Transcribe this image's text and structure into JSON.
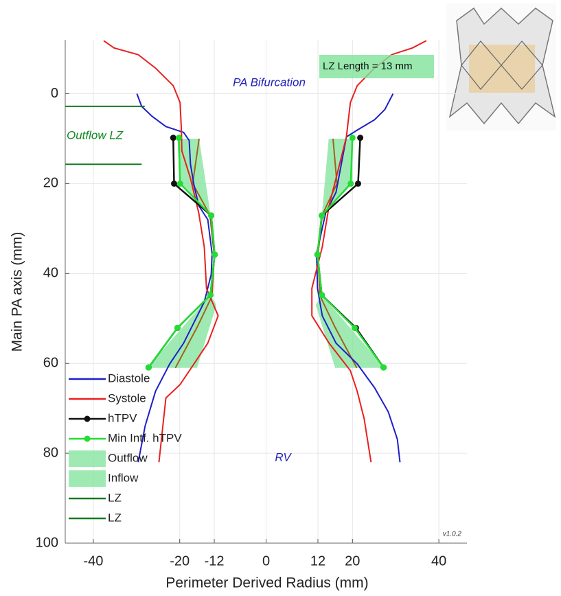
{
  "chart_data": {
    "type": "profile",
    "xlabel": "Perimeter Derived Radius (mm)",
    "ylabel": "Main PA axis (mm)",
    "xlim": [
      -46.5,
      46.5
    ],
    "ylim": [
      -12,
      100
    ],
    "y_reversed": true,
    "xticks": [
      -40,
      -20,
      -12,
      0,
      12,
      20,
      40
    ],
    "yticks": [
      0,
      20,
      40,
      60,
      80,
      100
    ],
    "grid": true,
    "legend": "lower left",
    "annotations": [
      "PA Bifurcation",
      "Outflow LZ",
      "RV",
      "LZ Length = 13 mm",
      "v1.0.2"
    ],
    "series": [
      {
        "name": "Outflow",
        "kind": "fill",
        "color": "#7fe39a",
        "x": [
          -20.5,
          -15.5,
          -13,
          -12.7,
          -20,
          null,
          14.5,
          20,
          20,
          12.9,
          13
        ],
        "y": [
          10,
          10,
          26,
          27.1,
          20,
          null,
          10,
          10,
          20,
          27.1,
          26
        ]
      },
      {
        "name": "Inflow",
        "kind": "fill",
        "color": "#7fe39a",
        "x": [
          -12.9,
          -11.5,
          -16,
          -27.5,
          null,
          12.9,
          27.5,
          16,
          11.5
        ],
        "y": [
          44.8,
          47,
          61,
          61,
          null,
          44.8,
          61,
          61,
          47
        ]
      },
      {
        "kind": "line",
        "color": "#a0621c",
        "x": [
          -15.5,
          -17,
          -13,
          -12,
          -12.5,
          -16,
          -21,
          null,
          15.5,
          16.4,
          13,
          12,
          12.5,
          16,
          21
        ],
        "y": [
          10,
          20,
          27,
          36,
          45,
          52,
          61,
          null,
          10,
          20,
          27,
          36,
          45,
          52,
          61
        ]
      },
      {
        "name": "Diastole",
        "kind": "line",
        "color": "#1f1fc8",
        "x": [
          -29.9,
          -28.8,
          -26.4,
          -23.2,
          -19.1,
          -17.8,
          -17.5,
          -16.7,
          -15.6,
          -13.5,
          -12.5,
          -12.7,
          -14.3,
          -16.7,
          -19.1,
          -22.3,
          -25.6,
          -28,
          -29.6,
          null,
          29.4,
          27.5,
          25.1,
          21.1,
          18.6,
          17.4,
          16.2,
          13.8,
          11.7,
          11.9,
          13,
          16.2,
          21.1,
          25.1,
          28.3,
          30.4,
          31
        ],
        "y": [
          0,
          2.8,
          5,
          7.3,
          8.6,
          10.4,
          15.7,
          20.3,
          24.9,
          28,
          35.6,
          40.2,
          46.3,
          50.9,
          55.5,
          60.1,
          66.2,
          73.9,
          82,
          null,
          0,
          3.5,
          5.8,
          8.1,
          9.6,
          15.7,
          21.9,
          26.5,
          35.6,
          43.3,
          49.4,
          55.5,
          60.1,
          65.4,
          70.8,
          76.9,
          82
        ]
      },
      {
        "name": "Systole",
        "kind": "line",
        "color": "#e8201e",
        "x": [
          -37.6,
          -35.2,
          -29.6,
          -25.6,
          -21.5,
          -19.9,
          -19.6,
          -19.5,
          -17.5,
          -15.6,
          -14.3,
          -13.8,
          -11.1,
          -13.5,
          -16.7,
          -19.9,
          -23.2,
          -23.9,
          -24.8,
          null,
          37.1,
          33.9,
          29.1,
          25.1,
          21.1,
          19.5,
          18.6,
          16.2,
          14.6,
          13,
          10.6,
          10.6,
          14.6,
          19.5,
          21.1,
          22.7,
          24.3
        ],
        "y": [
          -11.8,
          -10.2,
          -8.7,
          -5.7,
          -1.8,
          2,
          8.1,
          12.7,
          18.8,
          26.5,
          34.1,
          43.3,
          49.4,
          55.5,
          60.1,
          64.7,
          67.7,
          73.9,
          82,
          null,
          -11.8,
          -10.2,
          -8.7,
          -5.7,
          -1.8,
          2,
          9.6,
          18.8,
          24.9,
          34.1,
          43.3,
          49.4,
          55.5,
          61.6,
          66.2,
          72.3,
          82
        ]
      },
      {
        "name": "hTPV",
        "kind": "marker-line",
        "color": "#111111",
        "x": [
          -21.5,
          -21.3,
          -12.7,
          -11.9,
          -12.9,
          -20.5,
          -27.2,
          null,
          21.8,
          21.3,
          12.9,
          11.9,
          12.9,
          20.8,
          27.2
        ],
        "y": [
          9.8,
          20,
          27.1,
          35.8,
          44.8,
          52.1,
          60.9,
          null,
          9.8,
          20,
          27.1,
          35.8,
          44.8,
          52.1,
          60.9
        ]
      },
      {
        "name": "Min Intf. hTPV",
        "kind": "marker-line",
        "color": "#22dd33",
        "x": [
          -20.2,
          -19.9,
          -12.7,
          -11.9,
          -12.9,
          -20.5,
          -27.2,
          null,
          20,
          19.6,
          12.9,
          11.9,
          12.9,
          20.5,
          27.2
        ],
        "y": [
          9.8,
          20,
          27.1,
          35.8,
          44.8,
          52.1,
          60.9,
          null,
          9.8,
          20,
          27.1,
          35.8,
          44.8,
          52.1,
          60.9
        ]
      },
      {
        "name": "LZ",
        "kind": "line",
        "color": "#137a1f",
        "x": [
          -46.5,
          -28.1
        ],
        "y": [
          2.8,
          2.8
        ]
      },
      {
        "name": "LZ",
        "kind": "line",
        "color": "#137a1f",
        "x": [
          -46.5,
          -28.8
        ],
        "y": [
          15.7,
          15.7
        ]
      }
    ]
  }
}
